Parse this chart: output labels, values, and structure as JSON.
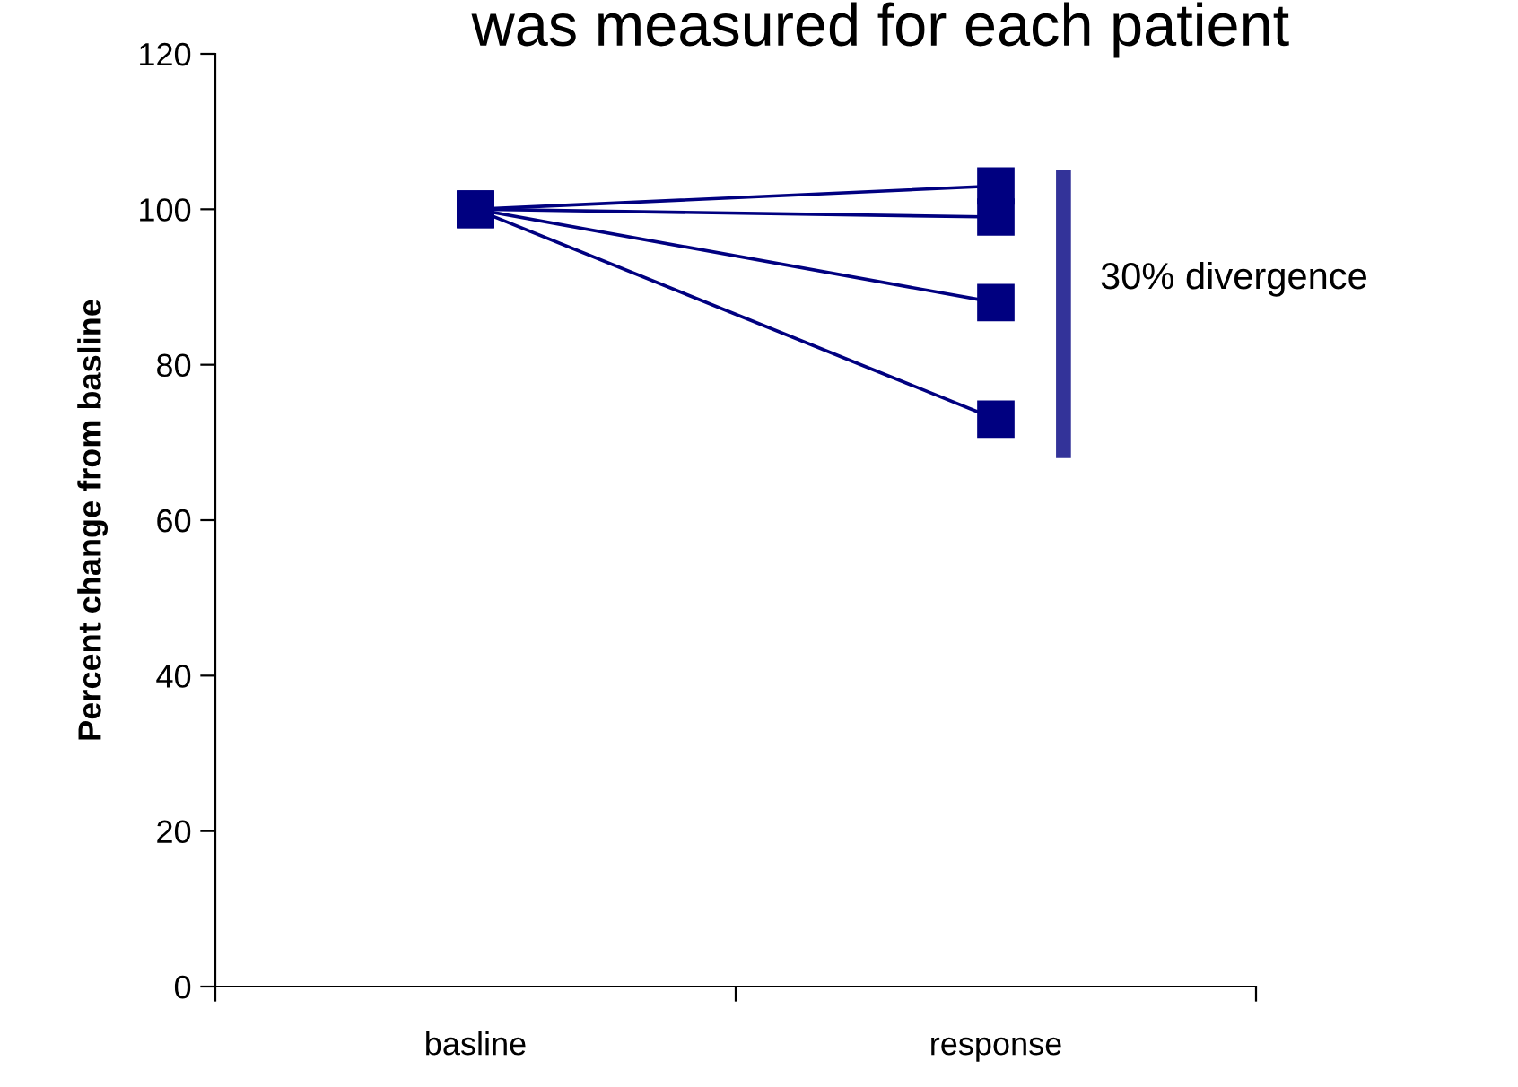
{
  "chart_data": {
    "type": "line",
    "title": "was measured for each patient",
    "ylabel": "Percent change from basline",
    "categories": [
      "basline",
      "response"
    ],
    "series": [
      {
        "color": "#000080",
        "values": [
          100,
          103
        ]
      },
      {
        "color": "#000080",
        "values": [
          100,
          99
        ]
      },
      {
        "color": "#000080",
        "values": [
          100,
          88
        ]
      },
      {
        "color": "#000080",
        "values": [
          100,
          73
        ]
      }
    ],
    "ylim": [
      0,
      120
    ],
    "yticks": [
      0,
      20,
      40,
      60,
      80,
      100,
      120
    ],
    "marker": "square",
    "grid": false,
    "legend": false,
    "annotations": [
      "30% divergence"
    ]
  }
}
